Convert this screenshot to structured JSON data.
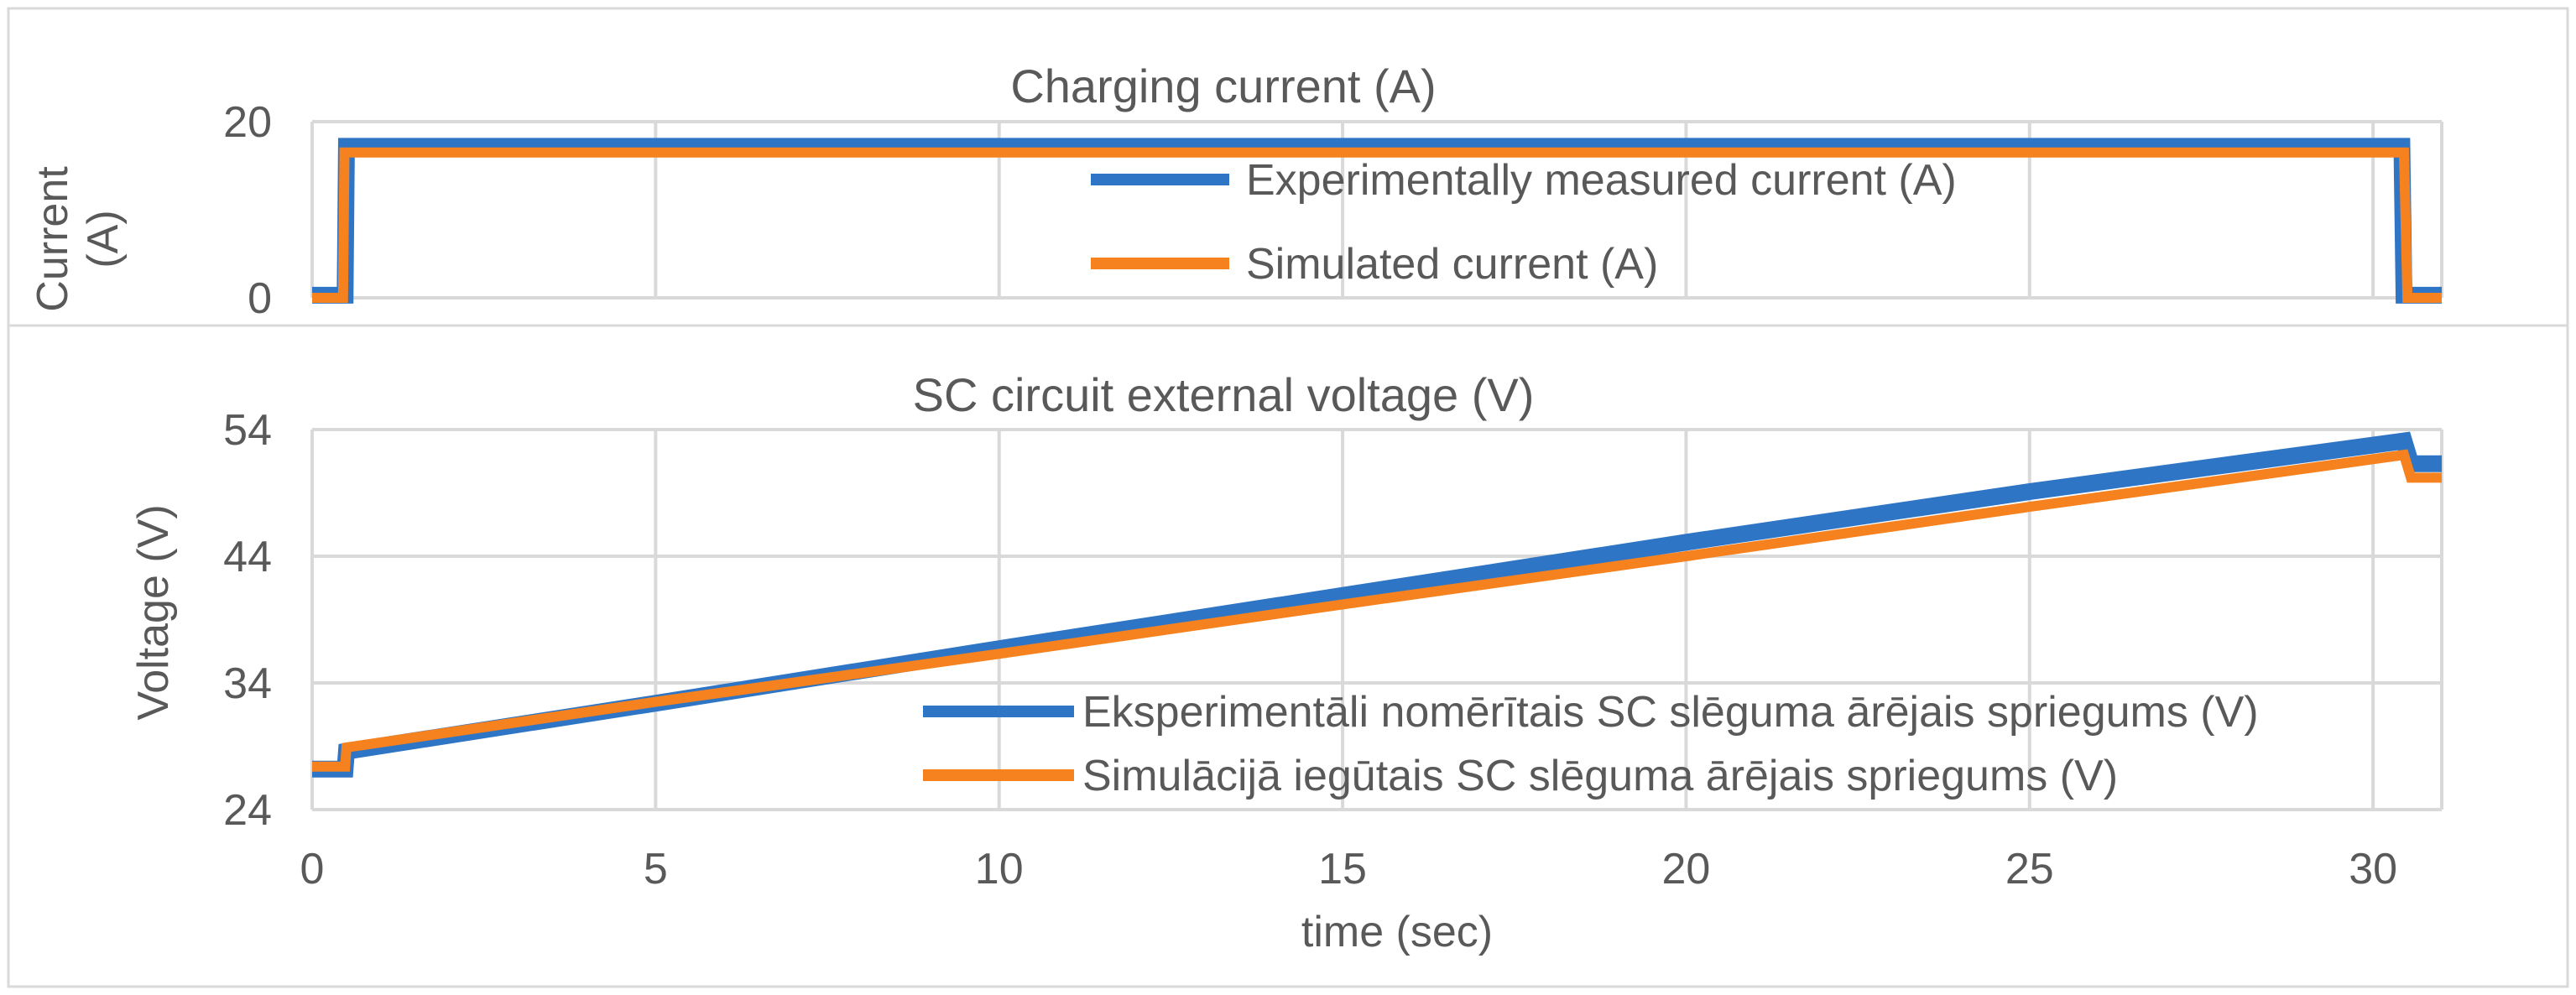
{
  "chart_data": [
    {
      "type": "line",
      "title": "Charging current (A)",
      "xlabel": "",
      "ylabel": "Current (A)",
      "ylabel_lines": [
        "Current",
        "(A)"
      ],
      "xlim": [
        0,
        31
      ],
      "ylim": [
        0,
        20
      ],
      "yticks": [
        0,
        20
      ],
      "grid": true,
      "legend_position": "right",
      "series": [
        {
          "name": "Experimentally measured current (A)",
          "color": "#2E75C6",
          "points": [
            [
              0,
              0.3
            ],
            [
              0.48,
              0.3
            ],
            [
              0.5,
              17.2
            ],
            [
              30.42,
              17.2
            ],
            [
              30.45,
              0.3
            ],
            [
              31,
              0.3
            ]
          ]
        },
        {
          "name": "Simulated current (A)",
          "color": "#F5821F",
          "points": [
            [
              0,
              0
            ],
            [
              0.45,
              0
            ],
            [
              0.47,
              16.5
            ],
            [
              30.45,
              16.5
            ],
            [
              30.5,
              0
            ],
            [
              31,
              0
            ]
          ]
        }
      ]
    },
    {
      "type": "line",
      "title": "SC circuit external voltage (V)",
      "xlabel": "time (sec)",
      "ylabel": "Voltage (V)",
      "xlim": [
        0,
        31
      ],
      "ylim": [
        24,
        54
      ],
      "xticks": [
        0,
        5,
        10,
        15,
        20,
        25,
        30
      ],
      "yticks": [
        24,
        34,
        44,
        54
      ],
      "grid": true,
      "legend_position": "bottom-right",
      "series": [
        {
          "name": "Eksperimentāli nomērītais SC slēguma ārējais spriegums (V)",
          "color": "#2E75C6",
          "points": [
            [
              0,
              27.2
            ],
            [
              0.48,
              27.2
            ],
            [
              0.5,
              28.6
            ],
            [
              5,
              32.4
            ],
            [
              10,
              36.7
            ],
            [
              15,
              40.9
            ],
            [
              20,
              45.1
            ],
            [
              25,
              49.1
            ],
            [
              30.45,
              53.1
            ],
            [
              30.55,
              51.3
            ],
            [
              31,
              51.3
            ]
          ]
        },
        {
          "name": "Simulācijā iegūtais SC slēguma ārējais spriegums (V)",
          "color": "#F5821F",
          "points": [
            [
              0,
              27.4
            ],
            [
              0.48,
              27.4
            ],
            [
              0.5,
              28.9
            ],
            [
              5,
              32.5
            ],
            [
              10,
              36.3
            ],
            [
              15,
              40.2
            ],
            [
              20,
              44.0
            ],
            [
              25,
              47.9
            ],
            [
              30.45,
              52.0
            ],
            [
              30.55,
              50.2
            ],
            [
              31,
              50.2
            ]
          ]
        }
      ]
    }
  ]
}
